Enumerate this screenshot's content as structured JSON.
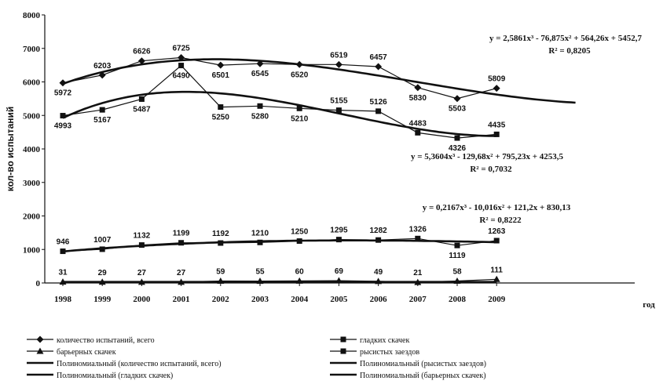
{
  "chart_data": {
    "type": "line",
    "title": "",
    "xlabel": "год",
    "ylabel": "кол-во испытаний",
    "x": [
      1998,
      1999,
      2000,
      2001,
      2002,
      2003,
      2004,
      2005,
      2006,
      2007,
      2008,
      2009
    ],
    "ylim": [
      0,
      8000
    ],
    "yticks": [
      0,
      1000,
      2000,
      3000,
      4000,
      5000,
      6000,
      7000,
      8000
    ],
    "grid": false,
    "legend_position": "bottom",
    "series": [
      {
        "name": "количество испытаний, всего",
        "marker": "diamond",
        "values": [
          5972,
          6203,
          6626,
          6725,
          6501,
          6545,
          6520,
          6519,
          6457,
          5830,
          5503,
          5809
        ],
        "labels": [
          "5972",
          "6203",
          "6626",
          "6725",
          "6501",
          "6545",
          "6520",
          "6519",
          "6457",
          "5830",
          "5503",
          "5809"
        ],
        "label_pos": [
          "below",
          "above",
          "above",
          "above",
          "below",
          "below",
          "below",
          "above",
          "above",
          "below",
          "below",
          "above"
        ]
      },
      {
        "name": "гладких скачек",
        "marker": "square",
        "values": [
          4993,
          5167,
          5487,
          6490,
          5250,
          5280,
          5210,
          5155,
          5126,
          4483,
          4326,
          4435
        ],
        "labels": [
          "4993",
          "5167",
          "5487",
          "6490",
          "5250",
          "5280",
          "5210",
          "5155",
          "5126",
          "4483",
          "4326",
          "4435"
        ],
        "label_pos": [
          "below",
          "below",
          "below",
          "below",
          "below",
          "below",
          "below",
          "above",
          "above",
          "above",
          "below",
          "above"
        ]
      },
      {
        "name": "рысистых заездов",
        "marker": "square",
        "values": [
          946,
          1007,
          1132,
          1199,
          1192,
          1210,
          1250,
          1295,
          1282,
          1326,
          1119,
          1263
        ],
        "labels": [
          "946",
          "1007",
          "1132",
          "1199",
          "1192",
          "1210",
          "1250",
          "1295",
          "1282",
          "1326",
          "1119",
          "1263"
        ],
        "label_pos": [
          "above",
          "above",
          "above",
          "above",
          "above",
          "above",
          "above",
          "above",
          "above",
          "above",
          "below",
          "above"
        ]
      },
      {
        "name": "барьерных скачек",
        "marker": "triangle",
        "values": [
          31,
          29,
          27,
          27,
          59,
          55,
          60,
          69,
          49,
          21,
          58,
          111
        ],
        "labels": [
          "31",
          "29",
          "27",
          "27",
          "59",
          "55",
          "60",
          "69",
          "49",
          "21",
          "58",
          "111"
        ],
        "label_pos": [
          "above",
          "above",
          "above",
          "above",
          "above",
          "above",
          "above",
          "above",
          "above",
          "above",
          "above",
          "above"
        ]
      }
    ],
    "trendlines": [
      {
        "name": "Полиномиальный (количество испытаний, всего)",
        "of_series": 0,
        "coef": [
          5452.7,
          564.26,
          -76.875,
          2.5861
        ],
        "x_end_index": 14.0,
        "equation": "y = 2,5861x³ - 76,875x² + 564,26x + 5452,7",
        "r2": "R² = 0,8205"
      },
      {
        "name": "Полиномиальный (гладких скачек)",
        "of_series": 1,
        "coef": [
          4253.5,
          795.23,
          -129.68,
          5.3604
        ],
        "x_end_index": 12.0,
        "equation": "y = 5,3604x³ - 129,68x² + 795,23x + 4253,5",
        "r2": "R² = 0,7032"
      },
      {
        "name": "Полиномиальный (рысистых заездов)",
        "of_series": 2,
        "coef": [
          830.13,
          121.2,
          -10.016,
          0.2167
        ],
        "x_end_index": 12.0,
        "equation": "y = 0,2167x³ - 10,016x² + 121,2x + 830,13",
        "r2": "R² = 0,8222"
      },
      {
        "name": "Полиномиальный (барьерных скачек)",
        "of_series": 3,
        "coef": [
          30,
          0,
          0,
          0
        ],
        "x_end_index": 12.0,
        "equation": "",
        "r2": ""
      }
    ],
    "legend": [
      {
        "label": "количество испытаний, всего",
        "marker": "diamond",
        "col": 0,
        "row": 0
      },
      {
        "label": "гладких скачек",
        "marker": "square",
        "col": 1,
        "row": 0
      },
      {
        "label": "барьерных скачек",
        "marker": "triangle",
        "col": 0,
        "row": 1
      },
      {
        "label": "рысистых заездов",
        "marker": "square",
        "col": 1,
        "row": 1
      },
      {
        "label": "Полиномиальный (количество испытаний, всего)",
        "marker": "line",
        "col": 0,
        "row": 2
      },
      {
        "label": "Полиномиальный (рысистых заездов)",
        "marker": "line",
        "col": 1,
        "row": 2
      },
      {
        "label": "Полиномиальный (гладких скачек)",
        "marker": "line",
        "col": 0,
        "row": 3
      },
      {
        "label": "Полиномиальный (барьерных скачек)",
        "marker": "line",
        "col": 1,
        "row": 3
      }
    ],
    "colors": {
      "line": "#111111",
      "axis": "#111111",
      "background": "#ffffff"
    }
  }
}
